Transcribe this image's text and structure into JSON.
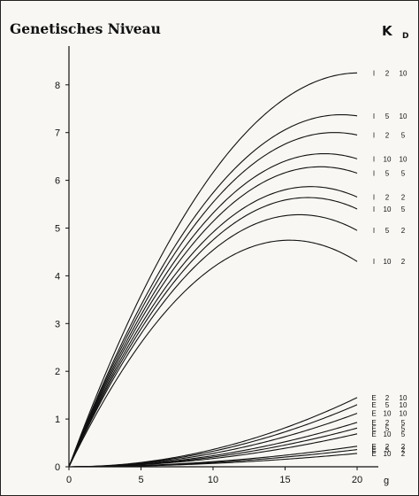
{
  "chart_data": {
    "type": "line",
    "title": "Genetisches Niveau",
    "column_headers": {
      "k": "K",
      "d": "D"
    },
    "xlabel": "g",
    "ylabel": "",
    "xlim": [
      0,
      21
    ],
    "ylim": [
      0,
      8.6
    ],
    "x_ticks": [
      0,
      5,
      10,
      15,
      20
    ],
    "x_tick_labels": [
      "0",
      "5",
      "10",
      "15",
      "20"
    ],
    "y_ticks": [
      0,
      1,
      2,
      3,
      4,
      5,
      6,
      7,
      8
    ],
    "y_tick_labels": [
      "0",
      "1",
      "2",
      "3",
      "4",
      "5",
      "6",
      "7",
      "8"
    ],
    "grid": false,
    "series": [
      {
        "name": "I 2 10",
        "mode": "I",
        "k": "2",
        "d": "10",
        "final": 8.25,
        "initial_slope": 0.82
      },
      {
        "name": "I 5 10",
        "mode": "I",
        "k": "5",
        "d": "10",
        "final": 7.35,
        "initial_slope": 0.78
      },
      {
        "name": "I 2 5",
        "mode": "I",
        "k": "2",
        "d": "5",
        "final": 6.95,
        "initial_slope": 0.76
      },
      {
        "name": "I 10 10",
        "mode": "I",
        "k": "10",
        "d": "10",
        "final": 6.45,
        "initial_slope": 0.74
      },
      {
        "name": "I 5 5",
        "mode": "I",
        "k": "5",
        "d": "5",
        "final": 6.15,
        "initial_slope": 0.72
      },
      {
        "name": "I 2 2",
        "mode": "I",
        "k": "2",
        "d": "2",
        "final": 5.65,
        "initial_slope": 0.7
      },
      {
        "name": "I 10 5",
        "mode": "I",
        "k": "10",
        "d": "5",
        "final": 5.4,
        "initial_slope": 0.68
      },
      {
        "name": "I 5 2",
        "mode": "I",
        "k": "5",
        "d": "2",
        "final": 4.95,
        "initial_slope": 0.66
      },
      {
        "name": "I 10 2",
        "mode": "I",
        "k": "10",
        "d": "2",
        "final": 4.3,
        "initial_slope": 0.62
      },
      {
        "name": "E 2 10",
        "mode": "E",
        "k": "2",
        "d": "10",
        "final": 1.45
      },
      {
        "name": "E 5 10",
        "mode": "E",
        "k": "5",
        "d": "10",
        "final": 1.3
      },
      {
        "name": "E 10 10",
        "mode": "E",
        "k": "10",
        "d": "10",
        "final": 1.12
      },
      {
        "name": "E 2 5",
        "mode": "E",
        "k": "2",
        "d": "5",
        "final": 0.93
      },
      {
        "name": "E 5 5",
        "mode": "E",
        "k": "5",
        "d": "5",
        "final": 0.81
      },
      {
        "name": "E 10 5",
        "mode": "E",
        "k": "10",
        "d": "5",
        "final": 0.69
      },
      {
        "name": "E 2 2",
        "mode": "E",
        "k": "2",
        "d": "2",
        "final": 0.43
      },
      {
        "name": "E 5 2",
        "mode": "E",
        "k": "5",
        "d": "2",
        "final": 0.36
      },
      {
        "name": "E 10 2",
        "mode": "E",
        "k": "10",
        "d": "2",
        "final": 0.28
      }
    ]
  }
}
